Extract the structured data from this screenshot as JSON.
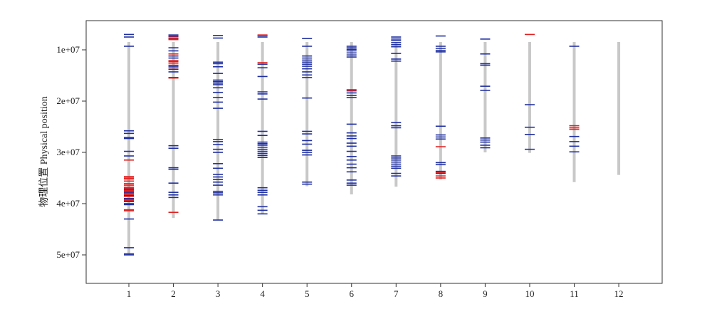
{
  "chart_data": {
    "type": "scatter",
    "ylabel": "物理位置 Physical position",
    "xlabel": "",
    "title": "",
    "x_categories": [
      "1",
      "2",
      "3",
      "4",
      "5",
      "6",
      "7",
      "8",
      "9",
      "10",
      "11",
      "12"
    ],
    "y_ticks": [
      10000000,
      20000000,
      30000000,
      40000000,
      50000000
    ],
    "y_tick_labels": [
      "1e+07",
      "2e+07",
      "3e+07",
      "4e+07",
      "5e+07"
    ],
    "ylim": [
      53900000,
      4000000
    ],
    "y_reversed": true,
    "grid": false,
    "colors": {
      "chromosome": "#c8c8c8",
      "blue_marker": "#1f2fa0",
      "red_marker": "#e02020",
      "frame": "#333333"
    },
    "chromosomes": [
      {
        "label": "1",
        "length": 50000000
      },
      {
        "label": "2",
        "length": 42800000
      },
      {
        "label": "3",
        "length": 43200000
      },
      {
        "label": "4",
        "length": 42000000
      },
      {
        "label": "5",
        "length": 36600000
      },
      {
        "label": "6",
        "length": 38200000
      },
      {
        "label": "7",
        "length": 36700000
      },
      {
        "label": "8",
        "length": 35300000
      },
      {
        "label": "9",
        "length": 30000000
      },
      {
        "label": "10",
        "length": 30100000
      },
      {
        "label": "11",
        "length": 35800000
      },
      {
        "label": "12",
        "length": 34400000
      }
    ],
    "markers": {
      "1": {
        "blue": [
          7000000,
          7500000,
          9300000,
          25800000,
          26300000,
          27100000,
          27300000,
          29800000,
          30700000,
          37200000,
          37800000,
          38400000,
          39000000,
          39600000,
          40000000,
          40200000,
          43000000,
          48600000,
          49800000,
          50000000
        ],
        "red": [
          31500000,
          34700000,
          35000000,
          35200000,
          35600000,
          36100000,
          36400000,
          36800000,
          37000000,
          37400000,
          37600000,
          38000000,
          38200000,
          38600000,
          39200000,
          39400000,
          41200000,
          41400000
        ]
      },
      "2": {
        "blue": [
          7100000,
          7400000,
          7700000,
          9600000,
          10200000,
          11200000,
          11600000,
          13200000,
          13800000,
          14300000,
          15400000,
          28700000,
          29200000,
          33000000,
          33300000,
          36000000,
          37800000,
          38300000,
          38800000
        ],
        "red": [
          7300000,
          7800000,
          8000000,
          10800000,
          12100000,
          12300000,
          12600000,
          13000000,
          13500000,
          15500000,
          41700000
        ]
      },
      "3": {
        "blue": [
          7200000,
          7700000,
          12400000,
          12700000,
          13300000,
          14600000,
          15900000,
          16200000,
          16500000,
          16800000,
          17400000,
          18300000,
          19300000,
          20200000,
          21400000,
          27500000,
          27900000,
          28500000,
          29400000,
          30000000,
          32200000,
          33100000,
          34300000,
          34800000,
          35300000,
          35800000,
          36400000,
          37600000,
          37900000,
          38300000,
          43200000
        ],
        "red": []
      },
      "4": {
        "blue": [
          7200000,
          7500000,
          12800000,
          13500000,
          15200000,
          18200000,
          18600000,
          19600000,
          25900000,
          26700000,
          28000000,
          28300000,
          28600000,
          29000000,
          29400000,
          29800000,
          30200000,
          30600000,
          31000000,
          36900000,
          37400000,
          37800000,
          38300000,
          40600000,
          41300000,
          42000000
        ],
        "red": [
          7100000,
          12500000
        ]
      },
      "5": {
        "blue": [
          7800000,
          9300000,
          11200000,
          11600000,
          12000000,
          12400000,
          12800000,
          13200000,
          13700000,
          14300000,
          14900000,
          15400000,
          19400000,
          25900000,
          26400000,
          27700000,
          28400000,
          29600000,
          30000000,
          30500000,
          35800000,
          36200000
        ],
        "red": []
      },
      "6": {
        "blue": [
          9300000,
          9600000,
          9900000,
          10200000,
          10600000,
          11000000,
          11400000,
          17800000,
          18400000,
          18900000,
          19300000,
          24500000,
          26200000,
          26800000,
          27300000,
          28200000,
          28800000,
          29800000,
          30800000,
          31500000,
          32300000,
          33000000,
          33800000,
          35400000,
          36000000,
          36400000
        ],
        "red": [
          18000000
        ]
      },
      "7": {
        "blue": [
          7500000,
          7900000,
          8200000,
          8600000,
          9000000,
          9400000,
          10700000,
          11800000,
          12200000,
          24200000,
          24800000,
          25200000,
          30700000,
          31100000,
          31500000,
          31900000,
          32300000,
          32700000,
          33100000,
          34100000,
          34600000
        ],
        "red": []
      },
      "8": {
        "blue": [
          7300000,
          9300000,
          9700000,
          10100000,
          10400000,
          24900000,
          26600000,
          27000000,
          27400000,
          32000000,
          32400000,
          33700000,
          34100000
        ],
        "red": [
          28900000,
          33900000,
          34600000,
          35000000
        ]
      },
      "9": {
        "blue": [
          7900000,
          10800000,
          12700000,
          13000000,
          17100000,
          17900000,
          27200000,
          27600000,
          28000000,
          28600000,
          29100000
        ],
        "red": []
      },
      "10": {
        "blue": [
          20700000,
          25100000,
          26500000,
          29400000
        ],
        "red": [
          7000000
        ]
      },
      "11": {
        "blue": [
          9300000,
          26900000,
          27900000,
          28800000,
          29900000
        ],
        "red": [
          24800000,
          25200000,
          25500000
        ]
      },
      "12": {
        "blue": [],
        "red": []
      }
    }
  }
}
